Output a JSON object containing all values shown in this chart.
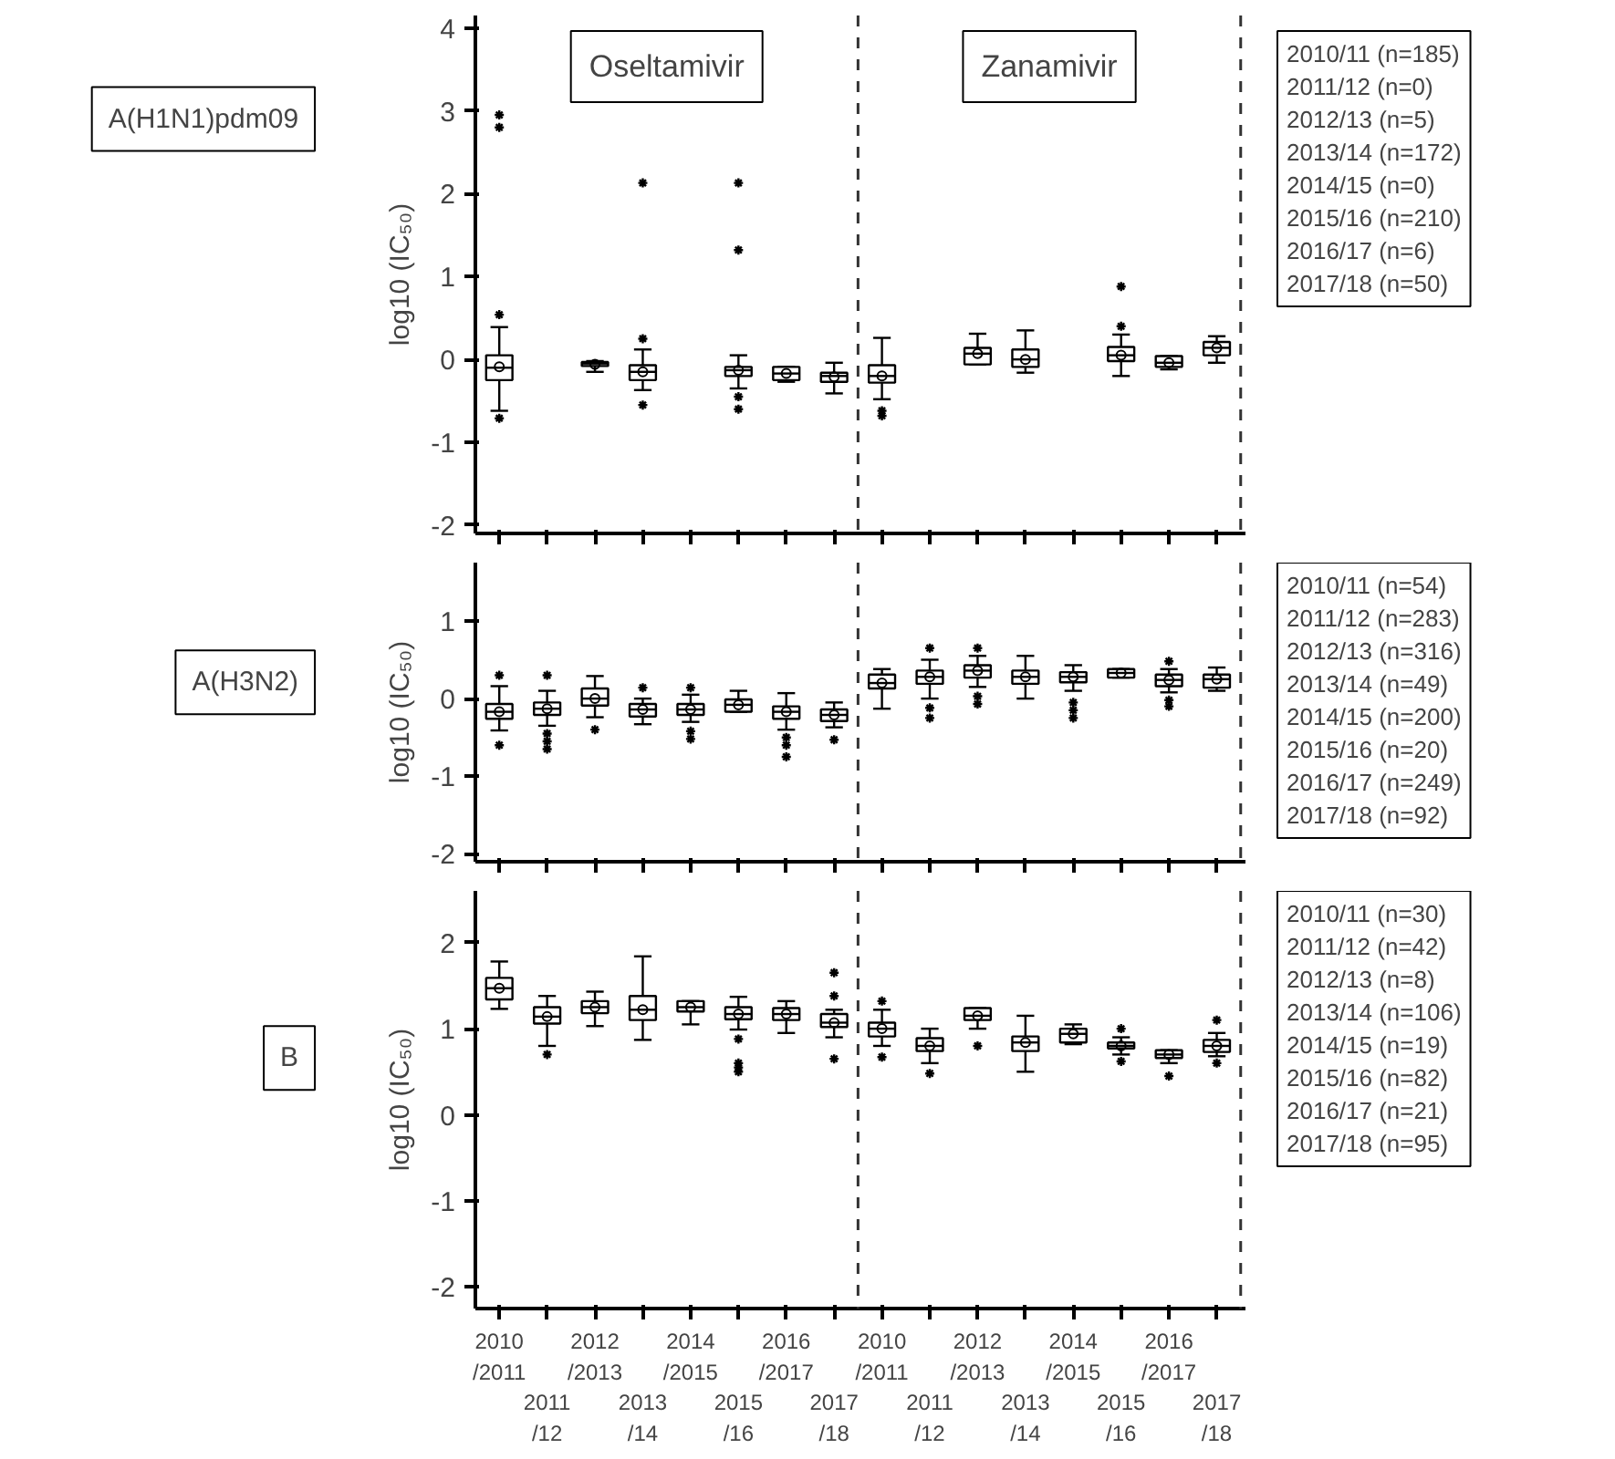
{
  "chart_data": [
    {
      "type": "box",
      "title": "A(H1N1)pdm09",
      "ylabel": "log10 (IC₅₀)",
      "categories": [
        null,
        null,
        null,
        null,
        null,
        null,
        null,
        null,
        null,
        null,
        null,
        null,
        null,
        null,
        null,
        null
      ],
      "ylim": [
        -2.1,
        4.15
      ],
      "yticks": [
        -2,
        -1,
        0,
        1,
        2,
        3,
        4
      ],
      "boxes": [
        {
          "low": -0.62,
          "q1": -0.25,
          "median": -0.1,
          "q3": 0.05,
          "high": 0.39,
          "mean": -0.09,
          "outliers": [
            0.54,
            -0.71,
            2.95,
            2.8
          ]
        },
        null,
        {
          "low": -0.15,
          "q1": -0.08,
          "median": -0.05,
          "q3": -0.03,
          "high": -0.02,
          "mean": -0.06
        },
        {
          "low": -0.37,
          "q1": -0.25,
          "median": -0.15,
          "q3": -0.07,
          "high": 0.12,
          "mean": -0.15,
          "outliers": [
            0.25,
            -0.55,
            2.13
          ]
        },
        null,
        {
          "low": -0.35,
          "q1": -0.2,
          "median": -0.13,
          "q3": -0.09,
          "high": 0.05,
          "mean": -0.13,
          "outliers": [
            2.13,
            1.32,
            -0.45,
            -0.6
          ]
        },
        {
          "low": -0.27,
          "q1": -0.25,
          "median": -0.17,
          "q3": -0.09,
          "high": -0.09,
          "mean": -0.17
        },
        {
          "low": -0.41,
          "q1": -0.27,
          "median": -0.2,
          "q3": -0.16,
          "high": -0.04,
          "mean": -0.21
        },
        {
          "low": -0.48,
          "q1": -0.28,
          "median": -0.2,
          "q3": -0.07,
          "high": 0.26,
          "mean": -0.2,
          "outliers": [
            -0.62,
            -0.68
          ]
        },
        null,
        {
          "low": -0.06,
          "q1": -0.06,
          "median": 0.07,
          "q3": 0.14,
          "high": 0.31,
          "mean": 0.07
        },
        {
          "low": -0.16,
          "q1": -0.09,
          "median": 0.0,
          "q3": 0.12,
          "high": 0.35,
          "mean": 0.0
        },
        null,
        {
          "low": -0.2,
          "q1": -0.02,
          "median": 0.05,
          "q3": 0.15,
          "high": 0.3,
          "mean": 0.05,
          "outliers": [
            0.88,
            0.4
          ]
        },
        {
          "low": -0.12,
          "q1": -0.09,
          "median": -0.04,
          "q3": 0.04,
          "high": 0.04,
          "mean": -0.04
        },
        {
          "low": -0.04,
          "q1": 0.05,
          "median": 0.14,
          "q3": 0.21,
          "high": 0.28,
          "mean": 0.14
        }
      ],
      "annotations": [
        "Oseltamivir",
        "Zanamivir",
        "2010/11 (n=185)\n2011/12 (n=0)\n2012/13 (n=5)\n2013/14 (n=172)\n2014/15 (n=0)\n2015/16 (n=210)\n2016/17 (n=6)\n2017/18 (n=50)"
      ]
    },
    {
      "type": "box",
      "title": "A(H3N2)",
      "ylabel": "log10 (IC₅₀)",
      "categories": [
        null,
        null,
        null,
        null,
        null,
        null,
        null,
        null,
        null,
        null,
        null,
        null,
        null,
        null,
        null,
        null
      ],
      "ylim": [
        -2.1,
        1.75
      ],
      "yticks": [
        -2,
        -1,
        0,
        1
      ],
      "boxes": [
        {
          "low": -0.41,
          "q1": -0.26,
          "median": -0.17,
          "q3": -0.07,
          "high": 0.16,
          "mean": -0.17,
          "outliers": [
            0.3,
            -0.6
          ]
        },
        {
          "low": -0.35,
          "q1": -0.21,
          "median": -0.13,
          "q3": -0.05,
          "high": 0.1,
          "mean": -0.13,
          "outliers": [
            0.3,
            -0.45,
            -0.55,
            -0.65
          ]
        },
        {
          "low": -0.24,
          "q1": -0.09,
          "median": 0.0,
          "q3": 0.13,
          "high": 0.29,
          "mean": 0.0,
          "outliers": [
            -0.4
          ]
        },
        {
          "low": -0.33,
          "q1": -0.23,
          "median": -0.14,
          "q3": -0.07,
          "high": 0.0,
          "mean": -0.14,
          "outliers": [
            0.14
          ]
        },
        {
          "low": -0.3,
          "q1": -0.21,
          "median": -0.14,
          "q3": -0.07,
          "high": 0.05,
          "mean": -0.14,
          "outliers": [
            0.14,
            -0.42,
            -0.52
          ]
        },
        {
          "low": -0.17,
          "q1": -0.17,
          "median": -0.08,
          "q3": -0.01,
          "high": 0.1,
          "mean": -0.08
        },
        {
          "low": -0.4,
          "q1": -0.26,
          "median": -0.17,
          "q3": -0.1,
          "high": 0.07,
          "mean": -0.17,
          "outliers": [
            -0.5,
            -0.6,
            -0.75
          ]
        },
        {
          "low": -0.37,
          "q1": -0.29,
          "median": -0.21,
          "q3": -0.14,
          "high": -0.05,
          "mean": -0.21,
          "outliers": [
            -0.53
          ]
        },
        {
          "low": -0.13,
          "q1": 0.13,
          "median": 0.2,
          "q3": 0.31,
          "high": 0.38,
          "mean": 0.2
        },
        {
          "low": 0.0,
          "q1": 0.19,
          "median": 0.28,
          "q3": 0.36,
          "high": 0.5,
          "mean": 0.28,
          "outliers": [
            0.65,
            -0.12,
            -0.25
          ]
        },
        {
          "low": 0.15,
          "q1": 0.27,
          "median": 0.36,
          "q3": 0.43,
          "high": 0.55,
          "mean": 0.36,
          "outliers": [
            0.65,
            0.03,
            -0.07
          ]
        },
        {
          "low": 0.0,
          "q1": 0.19,
          "median": 0.28,
          "q3": 0.36,
          "high": 0.55,
          "mean": 0.28
        },
        {
          "low": 0.1,
          "q1": 0.21,
          "median": 0.28,
          "q3": 0.34,
          "high": 0.43,
          "mean": 0.28,
          "outliers": [
            -0.05,
            -0.15,
            -0.25
          ]
        },
        {
          "low": 0.27,
          "q1": 0.27,
          "median": 0.33,
          "q3": 0.38,
          "high": 0.38,
          "mean": 0.33
        },
        {
          "low": 0.08,
          "q1": 0.16,
          "median": 0.24,
          "q3": 0.31,
          "high": 0.38,
          "mean": 0.24,
          "outliers": [
            0.48,
            -0.02,
            -0.1
          ]
        },
        {
          "low": 0.1,
          "q1": 0.14,
          "median": 0.25,
          "q3": 0.31,
          "high": 0.4,
          "mean": 0.25
        }
      ],
      "annotations": [
        "2010/11 (n=54)\n2011/12 (n=283)\n2012/13 (n=316)\n2013/14 (n=49)\n2014/15 (n=200)\n2015/16 (n=20)\n2016/17 (n=249)\n2017/18 (n=92)"
      ]
    },
    {
      "type": "box",
      "title": "B",
      "ylabel": "log10 (IC₅₀)",
      "categories": [
        "2010\n/2011",
        "2011\n/12",
        "2012\n/2013",
        "2013\n/14",
        "2014\n/2015",
        "2015\n/16",
        "2016\n/2017",
        "2017\n/18",
        "2010\n/2011",
        "2011\n/12",
        "2012\n/2013",
        "2013\n/14",
        "2014\n/2015",
        "2015\n/16",
        "2016\n/2017",
        "2017\n/18"
      ],
      "ylim": [
        -2.25,
        2.6
      ],
      "yticks": [
        -2,
        -1,
        0,
        1,
        2
      ],
      "boxes": [
        {
          "low": 1.23,
          "q1": 1.34,
          "median": 1.47,
          "q3": 1.59,
          "high": 1.78,
          "mean": 1.47
        },
        {
          "low": 0.8,
          "q1": 1.06,
          "median": 1.14,
          "q3": 1.25,
          "high": 1.38,
          "mean": 1.14,
          "outliers": [
            0.7
          ]
        },
        {
          "low": 1.03,
          "q1": 1.18,
          "median": 1.25,
          "q3": 1.32,
          "high": 1.43,
          "mean": 1.25
        },
        {
          "low": 0.87,
          "q1": 1.1,
          "median": 1.22,
          "q3": 1.38,
          "high": 1.84,
          "mean": 1.22
        },
        {
          "low": 1.05,
          "q1": 1.2,
          "median": 1.25,
          "q3": 1.32,
          "high": 1.32,
          "mean": 1.25
        },
        {
          "low": 0.99,
          "q1": 1.11,
          "median": 1.17,
          "q3": 1.25,
          "high": 1.37,
          "mean": 1.17,
          "outliers": [
            0.88,
            0.6,
            0.55,
            0.5
          ]
        },
        {
          "low": 0.95,
          "q1": 1.1,
          "median": 1.17,
          "q3": 1.24,
          "high": 1.32,
          "mean": 1.17
        },
        {
          "low": 0.9,
          "q1": 1.02,
          "median": 1.07,
          "q3": 1.17,
          "high": 1.22,
          "mean": 1.07,
          "outliers": [
            1.65,
            1.38,
            0.65
          ]
        },
        {
          "low": 0.8,
          "q1": 0.91,
          "median": 1.0,
          "q3": 1.07,
          "high": 1.22,
          "mean": 1.0,
          "outliers": [
            1.32,
            0.67
          ]
        },
        {
          "low": 0.6,
          "q1": 0.74,
          "median": 0.8,
          "q3": 0.89,
          "high": 1.0,
          "mean": 0.8,
          "outliers": [
            0.48
          ]
        },
        {
          "low": 1.0,
          "q1": 1.1,
          "median": 1.15,
          "q3": 1.24,
          "high": 1.24,
          "mean": 1.15,
          "outliers": [
            0.8
          ]
        },
        {
          "low": 0.5,
          "q1": 0.74,
          "median": 0.84,
          "q3": 0.91,
          "high": 1.15,
          "mean": 0.84
        },
        {
          "low": 0.82,
          "q1": 0.84,
          "median": 0.94,
          "q3": 1.0,
          "high": 1.05,
          "mean": 0.94
        },
        {
          "low": 0.7,
          "q1": 0.77,
          "median": 0.8,
          "q3": 0.84,
          "high": 0.9,
          "mean": 0.8,
          "outliers": [
            1.0,
            0.62
          ]
        },
        {
          "low": 0.6,
          "q1": 0.66,
          "median": 0.7,
          "q3": 0.75,
          "high": 0.75,
          "mean": 0.7,
          "outliers": [
            0.45
          ]
        },
        {
          "low": 0.68,
          "q1": 0.73,
          "median": 0.8,
          "q3": 0.87,
          "high": 0.95,
          "mean": 0.8,
          "outliers": [
            1.1,
            0.6
          ]
        }
      ],
      "annotations": [
        "2010/11 (n=30)\n2011/12 (n=42)\n2012/13 (n=8)\n2013/14 (n=106)\n2014/15 (n=19)\n2015/16 (n=82)\n2016/17 (n=21)\n2017/18 (n=95)"
      ]
    }
  ]
}
